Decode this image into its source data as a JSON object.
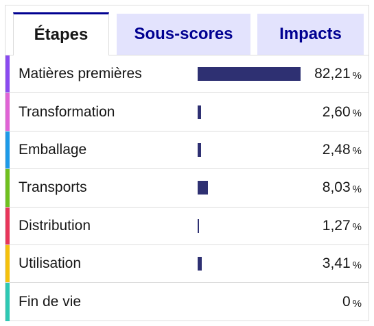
{
  "tabs": [
    {
      "label": "Étapes",
      "active": true
    },
    {
      "label": "Sous-scores",
      "active": false
    },
    {
      "label": "Impacts",
      "active": false
    }
  ],
  "colors": {
    "bar": "#2e3072",
    "tab_accent": "#000091",
    "tab_inactive_bg": "#e3e3fd"
  },
  "steps": [
    {
      "label": "Matières premières",
      "value": "82,21",
      "unit": "%",
      "percent": 82.21,
      "color": "#8a4bf0"
    },
    {
      "label": "Transformation",
      "value": "2,60",
      "unit": "%",
      "percent": 2.6,
      "color": "#e064d5"
    },
    {
      "label": "Emballage",
      "value": "2,48",
      "unit": "%",
      "percent": 2.48,
      "color": "#1d9ae8"
    },
    {
      "label": "Transports",
      "value": "8,03",
      "unit": "%",
      "percent": 8.03,
      "color": "#70c01f"
    },
    {
      "label": "Distribution",
      "value": "1,27",
      "unit": "%",
      "percent": 1.27,
      "color": "#e8365a"
    },
    {
      "label": "Utilisation",
      "value": "3,41",
      "unit": "%",
      "percent": 3.41,
      "color": "#f5c10d"
    },
    {
      "label": "Fin de vie",
      "value": "0",
      "unit": "%",
      "percent": 0,
      "color": "#2ec9b4"
    }
  ]
}
